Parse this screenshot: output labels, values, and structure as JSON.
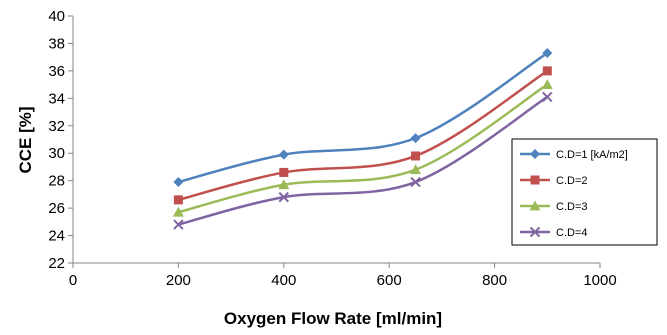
{
  "chart_data": {
    "type": "line",
    "title": "",
    "xlabel": "Oxygen Flow Rate [ml/min]",
    "ylabel": "CCE [%]",
    "xlim": [
      0,
      1000
    ],
    "ylim": [
      22,
      40
    ],
    "xticks": [
      0,
      200,
      400,
      600,
      800,
      1000
    ],
    "yticks": [
      22,
      24,
      26,
      28,
      30,
      32,
      34,
      36,
      38,
      40
    ],
    "grid": false,
    "legend_position": "right",
    "x": [
      200,
      400,
      650,
      900
    ],
    "series": [
      {
        "name": "C.D=1 [kA/m2]",
        "color": "#4F81BD",
        "marker": "diamond",
        "values": [
          27.9,
          29.9,
          31.1,
          37.3
        ]
      },
      {
        "name": "C.D=2",
        "color": "#C0504D",
        "marker": "square",
        "values": [
          26.6,
          28.6,
          29.8,
          36.0
        ]
      },
      {
        "name": "C.D=3",
        "color": "#9BBB59",
        "marker": "triangle",
        "values": [
          25.7,
          27.7,
          28.8,
          35.0
        ]
      },
      {
        "name": "C.D=4",
        "color": "#8064A2",
        "marker": "x",
        "values": [
          24.8,
          26.8,
          27.9,
          34.1
        ]
      }
    ]
  }
}
